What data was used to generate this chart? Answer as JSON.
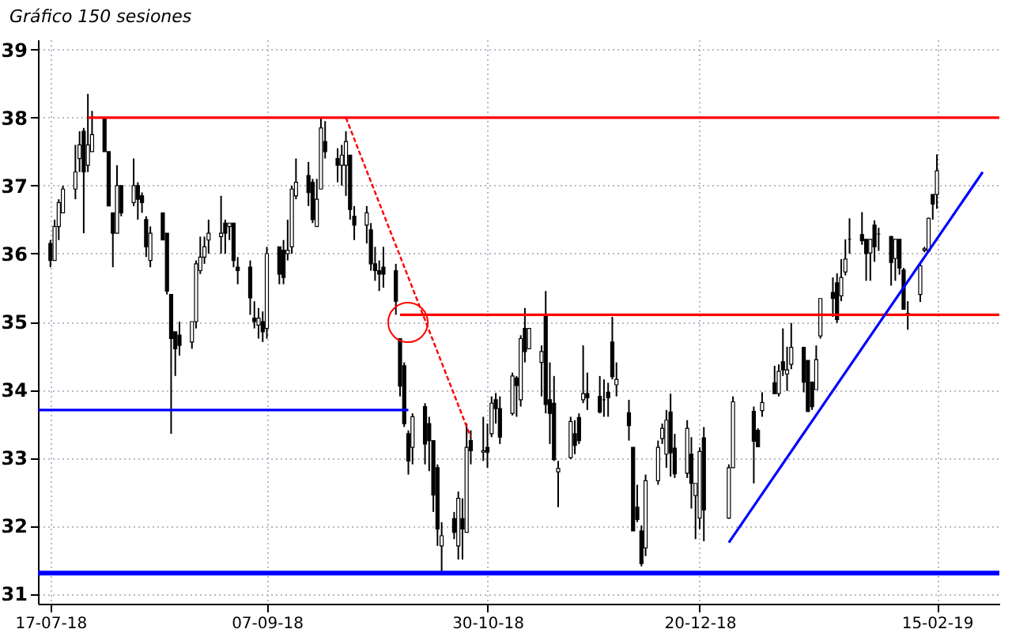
{
  "chart_data": {
    "type": "candlestick",
    "title": "Gráfico 150 sesiones",
    "x": [
      "2018-07-17",
      "2018-07-18",
      "2018-07-19",
      "2018-07-20",
      "2018-07-23",
      "2018-07-24",
      "2018-07-25",
      "2018-07-26",
      "2018-07-27",
      "2018-07-30",
      "2018-07-31",
      "2018-08-01",
      "2018-08-02",
      "2018-08-03",
      "2018-08-06",
      "2018-08-07",
      "2018-08-08",
      "2018-08-09",
      "2018-08-10",
      "2018-08-13",
      "2018-08-14",
      "2018-08-15",
      "2018-08-16",
      "2018-08-17",
      "2018-08-20",
      "2018-08-21",
      "2018-08-22",
      "2018-08-23",
      "2018-08-24",
      "2018-08-27",
      "2018-08-28",
      "2018-08-29",
      "2018-08-30",
      "2018-08-31",
      "2018-09-03",
      "2018-09-04",
      "2018-09-05",
      "2018-09-06",
      "2018-09-07",
      "2018-09-10",
      "2018-09-11",
      "2018-09-12",
      "2018-09-13",
      "2018-09-14",
      "2018-09-17",
      "2018-09-18",
      "2018-09-19",
      "2018-09-20",
      "2018-09-21",
      "2018-09-24",
      "2018-09-25",
      "2018-09-26",
      "2018-09-27",
      "2018-09-28",
      "2018-10-01",
      "2018-10-02",
      "2018-10-03",
      "2018-10-04",
      "2018-10-05",
      "2018-10-08",
      "2018-10-09",
      "2018-10-10",
      "2018-10-11",
      "2018-10-12",
      "2018-10-15",
      "2018-10-16",
      "2018-10-17",
      "2018-10-18",
      "2018-10-19",
      "2018-10-22",
      "2018-10-23",
      "2018-10-24",
      "2018-10-25",
      "2018-10-26",
      "2018-10-29",
      "2018-10-30",
      "2018-10-31",
      "2018-11-01",
      "2018-11-02",
      "2018-11-05",
      "2018-11-06",
      "2018-11-07",
      "2018-11-08",
      "2018-11-09",
      "2018-11-12",
      "2018-11-13",
      "2018-11-14",
      "2018-11-15",
      "2018-11-16",
      "2018-11-19",
      "2018-11-20",
      "2018-11-21",
      "2018-11-22",
      "2018-11-23",
      "2018-11-26",
      "2018-11-27",
      "2018-11-28",
      "2018-11-29",
      "2018-11-30",
      "2018-12-03",
      "2018-12-04",
      "2018-12-05",
      "2018-12-06",
      "2018-12-07",
      "2018-12-10",
      "2018-12-11",
      "2018-12-12",
      "2018-12-13",
      "2018-12-14",
      "2018-12-17",
      "2018-12-18",
      "2018-12-19",
      "2018-12-20",
      "2018-12-21",
      "2018-12-27",
      "2018-12-28",
      "2019-01-02",
      "2019-01-03",
      "2019-01-04",
      "2019-01-07",
      "2019-01-08",
      "2019-01-09",
      "2019-01-10",
      "2019-01-11",
      "2019-01-14",
      "2019-01-15",
      "2019-01-16",
      "2019-01-17",
      "2019-01-18",
      "2019-01-21",
      "2019-01-22",
      "2019-01-23",
      "2019-01-24",
      "2019-01-25",
      "2019-01-28",
      "2019-01-29",
      "2019-01-30",
      "2019-01-31",
      "2019-02-01",
      "2019-02-04",
      "2019-02-05",
      "2019-02-06",
      "2019-02-07",
      "2019-02-08",
      "2019-02-11",
      "2019-02-12",
      "2019-02-13",
      "2019-02-14",
      "2019-02-15"
    ],
    "ohlc": [
      [
        36.15,
        36.2,
        35.8,
        35.9
      ],
      [
        35.9,
        36.5,
        35.9,
        36.4
      ],
      [
        36.4,
        36.8,
        36.2,
        36.75
      ],
      [
        36.6,
        37.0,
        36.6,
        36.95
      ],
      [
        36.95,
        37.6,
        36.8,
        37.2
      ],
      [
        37.4,
        37.8,
        37.2,
        37.6
      ],
      [
        37.8,
        37.85,
        36.3,
        37.2
      ],
      [
        37.3,
        38.35,
        37.2,
        37.6
      ],
      [
        37.5,
        38.1,
        37.5,
        37.75
      ],
      [
        38.0,
        38.0,
        37.5,
        37.5
      ],
      [
        37.5,
        37.5,
        36.7,
        36.7
      ],
      [
        36.6,
        36.6,
        35.8,
        36.3
      ],
      [
        36.3,
        37.3,
        36.3,
        37.0
      ],
      [
        37.0,
        37.0,
        36.55,
        36.6
      ],
      [
        36.75,
        37.4,
        36.7,
        37.0
      ],
      [
        37.0,
        37.05,
        36.5,
        36.8
      ],
      [
        36.85,
        36.9,
        36.6,
        36.75
      ],
      [
        36.5,
        36.55,
        35.95,
        36.1
      ],
      [
        35.9,
        36.4,
        35.8,
        36.3
      ],
      [
        36.6,
        36.6,
        36.2,
        36.2
      ],
      [
        36.3,
        36.3,
        35.4,
        35.45
      ],
      [
        35.4,
        35.4,
        33.35,
        34.75
      ],
      [
        34.85,
        34.85,
        34.2,
        34.6
      ],
      [
        34.8,
        35.0,
        34.5,
        34.65
      ],
      [
        34.7,
        35.0,
        34.6,
        35.0
      ],
      [
        35.0,
        35.9,
        34.9,
        35.85
      ],
      [
        35.75,
        36.25,
        35.7,
        35.95
      ],
      [
        35.95,
        36.25,
        35.85,
        36.1
      ],
      [
        36.2,
        36.5,
        36.0,
        36.3
      ],
      [
        36.25,
        36.85,
        36.0,
        36.3
      ],
      [
        36.45,
        36.5,
        36.0,
        36.3
      ],
      [
        36.4,
        36.45,
        36.2,
        36.45
      ],
      [
        36.45,
        36.45,
        35.8,
        35.9
      ],
      [
        35.8,
        35.95,
        35.55,
        35.75
      ],
      [
        35.8,
        35.9,
        35.1,
        35.35
      ],
      [
        35.05,
        35.3,
        34.9,
        35.0
      ],
      [
        34.95,
        35.2,
        34.75,
        35.05
      ],
      [
        35.0,
        35.15,
        34.7,
        34.85
      ],
      [
        34.9,
        36.1,
        34.75,
        36.0
      ],
      [
        36.1,
        36.1,
        35.55,
        35.7
      ],
      [
        36.05,
        36.2,
        35.55,
        35.65
      ],
      [
        36.0,
        36.5,
        35.9,
        36.05
      ],
      [
        36.1,
        37.0,
        36.0,
        36.95
      ],
      [
        36.85,
        37.4,
        36.8,
        37.05
      ],
      [
        37.15,
        37.35,
        36.7,
        36.9
      ],
      [
        37.05,
        37.1,
        36.45,
        36.5
      ],
      [
        36.4,
        37.1,
        36.4,
        36.8
      ],
      [
        36.95,
        38.0,
        36.95,
        37.85
      ],
      [
        37.65,
        37.95,
        37.4,
        37.5
      ],
      [
        37.4,
        37.55,
        37.05,
        37.3
      ],
      [
        37.3,
        37.6,
        37.0,
        37.45
      ],
      [
        37.3,
        37.8,
        36.85,
        37.65
      ],
      [
        37.45,
        37.45,
        36.5,
        36.65
      ],
      [
        36.55,
        36.7,
        36.2,
        36.42
      ],
      [
        36.42,
        36.7,
        36.15,
        36.6
      ],
      [
        36.35,
        36.45,
        35.75,
        35.85
      ],
      [
        35.85,
        36.1,
        35.6,
        35.75
      ],
      [
        35.75,
        35.9,
        35.45,
        35.7
      ],
      [
        35.8,
        36.1,
        35.5,
        35.7
      ],
      [
        35.75,
        35.85,
        35.1,
        35.3
      ],
      [
        34.75,
        34.75,
        33.9,
        34.05
      ],
      [
        34.35,
        34.4,
        33.45,
        33.5
      ],
      [
        33.35,
        33.4,
        32.75,
        32.95
      ],
      [
        33.15,
        33.65,
        32.9,
        33.6
      ],
      [
        33.75,
        33.8,
        32.9,
        33.2
      ],
      [
        33.5,
        33.6,
        32.8,
        33.25
      ],
      [
        33.25,
        33.25,
        32.2,
        32.45
      ],
      [
        32.85,
        32.9,
        31.7,
        31.95
      ],
      [
        31.7,
        32.05,
        31.3,
        31.85
      ],
      [
        32.1,
        32.2,
        31.8,
        31.9
      ],
      [
        31.7,
        32.5,
        31.5,
        32.4
      ],
      [
        32.1,
        32.4,
        31.5,
        31.95
      ],
      [
        31.9,
        33.5,
        31.9,
        33.15
      ],
      [
        33.25,
        33.4,
        32.9,
        33.1
      ],
      [
        33.08,
        33.6,
        32.95,
        33.1
      ],
      [
        33.15,
        33.5,
        32.85,
        33.08
      ],
      [
        33.35,
        33.9,
        33.3,
        33.8
      ],
      [
        33.85,
        33.95,
        33.5,
        33.72
      ],
      [
        33.72,
        33.9,
        33.2,
        33.3
      ],
      [
        33.65,
        34.25,
        33.62,
        34.2
      ],
      [
        34.17,
        34.2,
        33.6,
        34.06
      ],
      [
        33.85,
        34.8,
        33.75,
        34.75
      ],
      [
        34.9,
        35.2,
        34.4,
        34.56
      ],
      [
        34.6,
        34.9,
        34.6,
        34.9
      ],
      [
        34.4,
        34.65,
        33.9,
        34.56
      ],
      [
        35.08,
        35.45,
        33.65,
        33.78
      ],
      [
        33.85,
        34.4,
        33.2,
        33.65
      ],
      [
        33.8,
        34.2,
        32.95,
        32.97
      ],
      [
        32.79,
        32.95,
        32.27,
        32.84
      ],
      [
        33.0,
        33.6,
        32.98,
        33.53
      ],
      [
        33.35,
        33.55,
        33.05,
        33.18
      ],
      [
        33.59,
        33.65,
        33.2,
        33.25
      ],
      [
        33.85,
        34.65,
        33.8,
        33.94
      ],
      [
        33.94,
        34.25,
        33.7,
        33.88
      ],
      [
        33.9,
        34.2,
        33.65,
        33.67
      ],
      [
        33.85,
        34.15,
        33.6,
        33.85
      ],
      [
        33.96,
        34.1,
        33.6,
        33.88
      ],
      [
        34.7,
        35.07,
        34.15,
        34.19
      ],
      [
        34.07,
        34.4,
        33.9,
        34.15
      ],
      [
        33.66,
        33.85,
        33.25,
        33.47
      ],
      [
        33.15,
        33.15,
        31.92,
        31.92
      ],
      [
        32.27,
        32.6,
        32.05,
        32.09
      ],
      [
        31.92,
        32.0,
        31.4,
        31.44
      ],
      [
        31.67,
        32.75,
        31.55,
        32.66
      ],
      [
        32.66,
        33.25,
        32.6,
        33.15
      ],
      [
        33.28,
        33.5,
        33.2,
        33.43
      ],
      [
        33.05,
        33.7,
        32.85,
        33.55
      ],
      [
        33.67,
        33.94,
        32.72,
        33.07
      ],
      [
        33.14,
        33.35,
        32.7,
        32.76
      ],
      [
        32.77,
        33.55,
        32.7,
        33.43
      ],
      [
        33.05,
        33.3,
        32.25,
        32.62
      ],
      [
        32.44,
        32.62,
        31.8,
        32.62
      ],
      [
        32.11,
        33.15,
        31.95,
        33.09
      ],
      [
        33.29,
        33.45,
        31.77,
        32.23
      ],
      [
        32.11,
        32.9,
        32.1,
        32.85
      ],
      [
        32.85,
        33.9,
        32.85,
        33.82
      ],
      [
        33.68,
        33.75,
        32.62,
        33.24
      ],
      [
        33.4,
        33.43,
        33.16,
        33.16
      ],
      [
        33.69,
        33.96,
        33.6,
        33.81
      ],
      [
        34.1,
        34.35,
        33.94,
        33.94
      ],
      [
        33.94,
        34.37,
        33.9,
        34.27
      ],
      [
        34.41,
        34.9,
        34.2,
        34.29
      ],
      [
        34.23,
        34.63,
        33.98,
        34.29
      ],
      [
        34.37,
        34.98,
        34.3,
        34.62
      ],
      [
        34.62,
        34.63,
        33.96,
        34.11
      ],
      [
        34.43,
        34.43,
        33.67,
        33.68
      ],
      [
        34.11,
        34.12,
        33.7,
        33.75
      ],
      [
        34.0,
        34.65,
        34.0,
        34.44
      ],
      [
        34.79,
        35.34,
        34.75,
        35.34
      ],
      [
        35.43,
        35.65,
        35.07,
        35.34
      ],
      [
        35.57,
        35.71,
        34.98,
        35.03
      ],
      [
        35.38,
        35.92,
        35.3,
        35.65
      ],
      [
        35.73,
        36.21,
        35.68,
        35.92
      ],
      [
        36.21,
        36.52,
        36.0,
        36.21
      ],
      [
        36.28,
        36.61,
        36.13,
        36.19
      ],
      [
        36.21,
        36.21,
        35.6,
        36.0
      ],
      [
        36.01,
        36.21,
        35.6,
        36.21
      ],
      [
        36.42,
        36.49,
        35.88,
        36.1
      ],
      [
        36.29,
        36.38,
        36.04,
        36.29
      ],
      [
        36.25,
        36.26,
        35.53,
        35.87
      ],
      [
        35.93,
        36.21,
        35.6,
        36.21
      ],
      [
        36.21,
        36.21,
        35.69,
        35.79
      ],
      [
        35.76,
        35.79,
        35.18,
        35.18
      ],
      [
        35.09,
        35.3,
        34.88,
        35.12
      ],
      [
        35.4,
        35.86,
        35.29,
        35.82
      ],
      [
        36.05,
        36.1,
        36.02,
        36.07
      ],
      [
        36.04,
        36.53,
        36.03,
        36.52
      ],
      [
        36.87,
        36.87,
        36.5,
        36.73
      ],
      [
        36.87,
        37.46,
        36.66,
        37.22
      ]
    ],
    "series": [
      {
        "type": "line",
        "color": "#ff0000",
        "x": [
          "2018-07-26",
          "2019-03-02"
        ],
        "values": [
          38.0,
          38.0
        ]
      },
      {
        "type": "line",
        "color": "#ff0000",
        "line_style": "dashed",
        "x": [
          "2018-09-26",
          "2018-10-26"
        ],
        "values": [
          38.0,
          33.3
        ]
      },
      {
        "type": "line",
        "color": "#ff0000",
        "x": [
          "2018-10-09",
          "2019-03-02"
        ],
        "values": [
          35.1,
          35.1
        ]
      },
      {
        "type": "line",
        "color": "#0000ff",
        "x": [
          "2018-07-14",
          "2018-10-11"
        ],
        "values": [
          33.7,
          33.7
        ]
      },
      {
        "type": "line",
        "color": "#0000ff",
        "x": [
          "2018-12-27",
          "2019-02-26"
        ],
        "values": [
          31.75,
          37.2
        ]
      }
    ],
    "ref_lines": [
      {
        "axis": "y",
        "value": 31.3,
        "color": "#0000ff"
      }
    ],
    "xlim": [
      "2018-07-14",
      "2019-03-02"
    ],
    "xticks": [
      {
        "value": "2018-07-17",
        "label": "17-07-18"
      },
      {
        "value": "2018-09-07",
        "label": "07-09-18"
      },
      {
        "value": "2018-10-30",
        "label": "30-10-18"
      },
      {
        "value": "2018-12-20",
        "label": "20-12-18"
      },
      {
        "value": "2019-02-15",
        "label": "15-02-19"
      }
    ],
    "ylim": [
      30.85,
      39.15
    ],
    "yticks": [
      31,
      32,
      33,
      34,
      35,
      36,
      37,
      38,
      39
    ],
    "grid": true,
    "line_style": "solid"
  }
}
